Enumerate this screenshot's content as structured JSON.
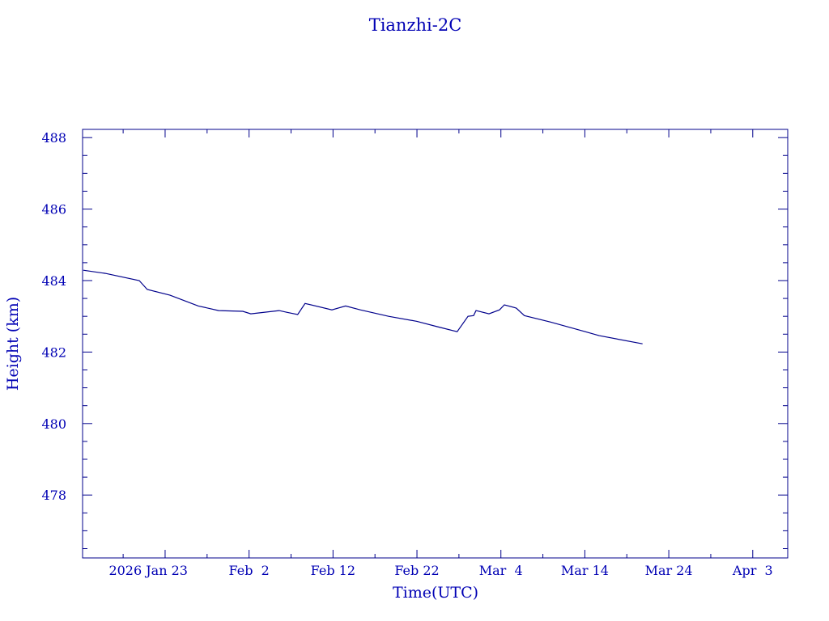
{
  "chart_data": {
    "type": "line",
    "title": "Tianzhi-2C",
    "xlabel": "Time(UTC)",
    "ylabel": "Height (km)",
    "xlim": [
      "2026-01-13T04:00",
      "2026-04-07T04:00"
    ],
    "ylim": [
      476.24,
      488.23
    ],
    "x_ticks": [
      {
        "date": "2026-01-23",
        "label": "2026 Jan 23"
      },
      {
        "date": "2026-02-02",
        "label": "Feb  2"
      },
      {
        "date": "2026-02-12",
        "label": "Feb 12"
      },
      {
        "date": "2026-02-22",
        "label": "Feb 22"
      },
      {
        "date": "2026-03-04",
        "label": "Mar  4"
      },
      {
        "date": "2026-03-14",
        "label": "Mar 14"
      },
      {
        "date": "2026-03-24",
        "label": "Mar 24"
      },
      {
        "date": "2026-04-03",
        "label": "Apr  3"
      }
    ],
    "x_minor_step_days": 5,
    "y_ticks": [
      478,
      480,
      482,
      484,
      486,
      488
    ],
    "y_minor_step": 0.5,
    "grid": false,
    "color": "#00008b",
    "text_color": "#0000b4",
    "series": [
      {
        "x": [
          "2026-01-13T06:00",
          "2026-01-15T21:00",
          "2026-01-19T22:00",
          "2026-01-20T21:00",
          "2026-01-23T14:00",
          "2026-01-26T23:00",
          "2026-01-29T09:00",
          "2026-02-01T06:00",
          "2026-02-02T05:00",
          "2026-02-05T14:00",
          "2026-02-06T13:00",
          "2026-02-07T19:00",
          "2026-02-08T16:00",
          "2026-02-11T21:00",
          "2026-02-13T12:00",
          "2026-02-15T06:00",
          "2026-02-18T15:00",
          "2026-02-22T00:00",
          "2026-02-24T10:00",
          "2026-02-26T19:00",
          "2026-02-28T02:00",
          "2026-02-28T18:00",
          "2026-03-01T01:00",
          "2026-03-02T14:00",
          "2026-03-03T20:00",
          "2026-03-04T10:00",
          "2026-03-05T20:00",
          "2026-03-06T19:00",
          "2026-03-09T22:00",
          "2026-03-13T18:00",
          "2026-03-15T17:00",
          "2026-03-20T21:00"
        ],
        "y": [
          484.29,
          484.2,
          484.0,
          483.75,
          483.59,
          483.29,
          483.16,
          483.14,
          483.07,
          483.16,
          483.11,
          483.05,
          483.36,
          483.18,
          483.29,
          483.18,
          483.0,
          482.86,
          482.71,
          482.57,
          483.0,
          483.02,
          483.16,
          483.07,
          483.18,
          483.32,
          483.23,
          483.02,
          482.84,
          482.59,
          482.46,
          482.23
        ]
      }
    ]
  }
}
